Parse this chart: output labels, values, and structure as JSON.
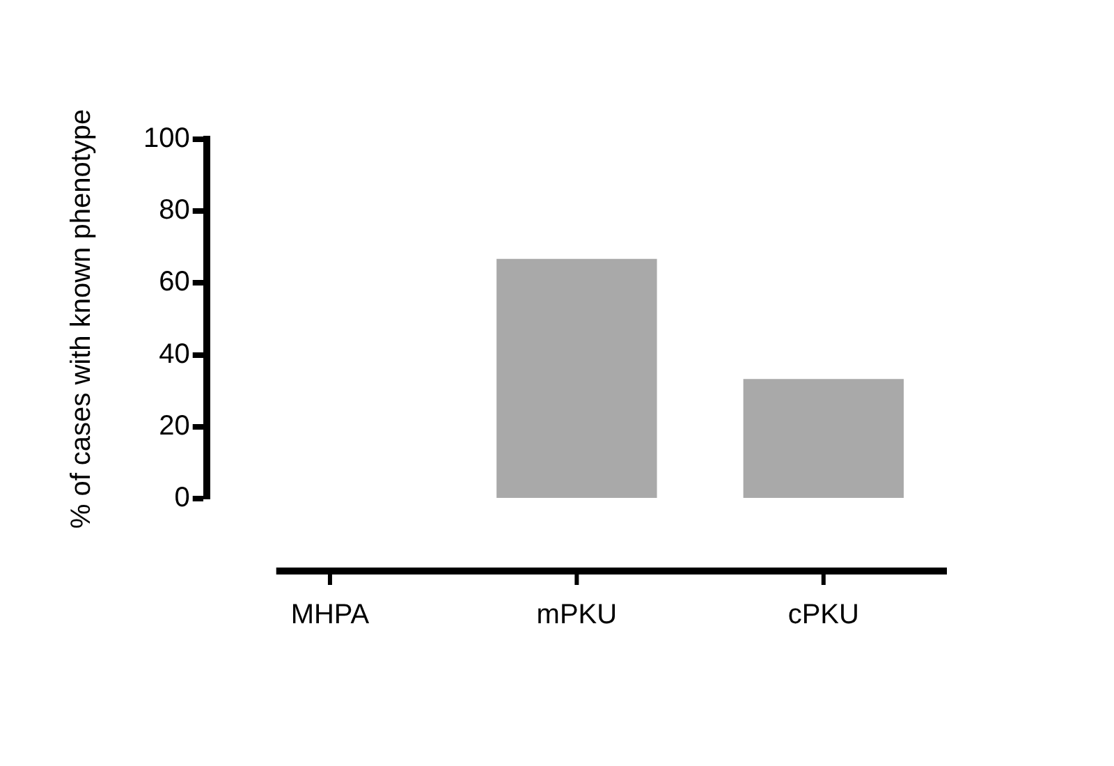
{
  "chart_data": {
    "type": "bar",
    "ylabel": "% of cases with known phenotype",
    "categories": [
      "MHPA",
      "mPKU",
      "cPKU"
    ],
    "values": [
      0,
      66.7,
      33.3
    ],
    "color": "#a9a9a9",
    "ylim": [
      0,
      100
    ],
    "yticks": [
      0,
      20,
      40,
      60,
      80,
      100
    ],
    "grid": false,
    "legend": false
  }
}
